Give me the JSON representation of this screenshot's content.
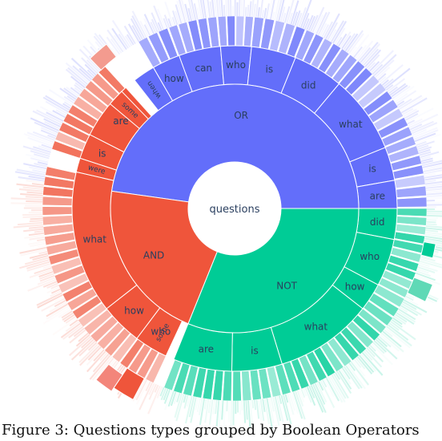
{
  "caption": "Figure 3: Questions types grouped by Boolean Operators",
  "chart_data": {
    "type": "sunburst",
    "title": "",
    "root": "questions",
    "colors": {
      "OR": "#636efa",
      "AND": "#ef553b",
      "NOT": "#00cc96"
    },
    "children": [
      {
        "name": "OR",
        "start": -82,
        "end": 90,
        "children": [
          {
            "name": "can",
            "start": -20,
            "end": -5
          },
          {
            "name": "who",
            "start": -5,
            "end": 6
          },
          {
            "name": "is",
            "start": 6,
            "end": 22
          },
          {
            "name": "did",
            "start": 22,
            "end": 40
          },
          {
            "name": "what",
            "start": 40,
            "end": 68
          },
          {
            "name": "is",
            "start": 68,
            "end": 80
          },
          {
            "name": "are",
            "start": 80,
            "end": 90
          },
          {
            "name": "how",
            "start": -30,
            "end": -20
          },
          {
            "name": "when",
            "start": -38,
            "end": -30
          }
        ]
      },
      {
        "name": "NOT",
        "start": 90,
        "end": 202,
        "children": [
          {
            "name": "did",
            "start": 90,
            "end": 101
          },
          {
            "name": "who",
            "start": 101,
            "end": 118
          },
          {
            "name": "how",
            "start": 118,
            "end": 128
          },
          {
            "name": "what",
            "start": 128,
            "end": 163
          },
          {
            "name": "is",
            "start": 163,
            "end": 181
          },
          {
            "name": "are",
            "start": 181,
            "end": 202
          },
          {
            "name": "some",
            "start": 207,
            "end": 213
          }
        ]
      },
      {
        "name": "AND",
        "start": 202,
        "end": 278,
        "children": [
          {
            "name": "who",
            "start": 205,
            "end": 217
          },
          {
            "name": "how",
            "start": 217,
            "end": 232
          },
          {
            "name": "what",
            "start": 232,
            "end": 283
          },
          {
            "name": "were",
            "start": 283,
            "end": 288
          },
          {
            "name": "is",
            "start": 288,
            "end": 297
          },
          {
            "name": "are",
            "start": 297,
            "end": 318
          },
          {
            "name": "some",
            "start": 310,
            "end": 316
          }
        ]
      }
    ]
  }
}
